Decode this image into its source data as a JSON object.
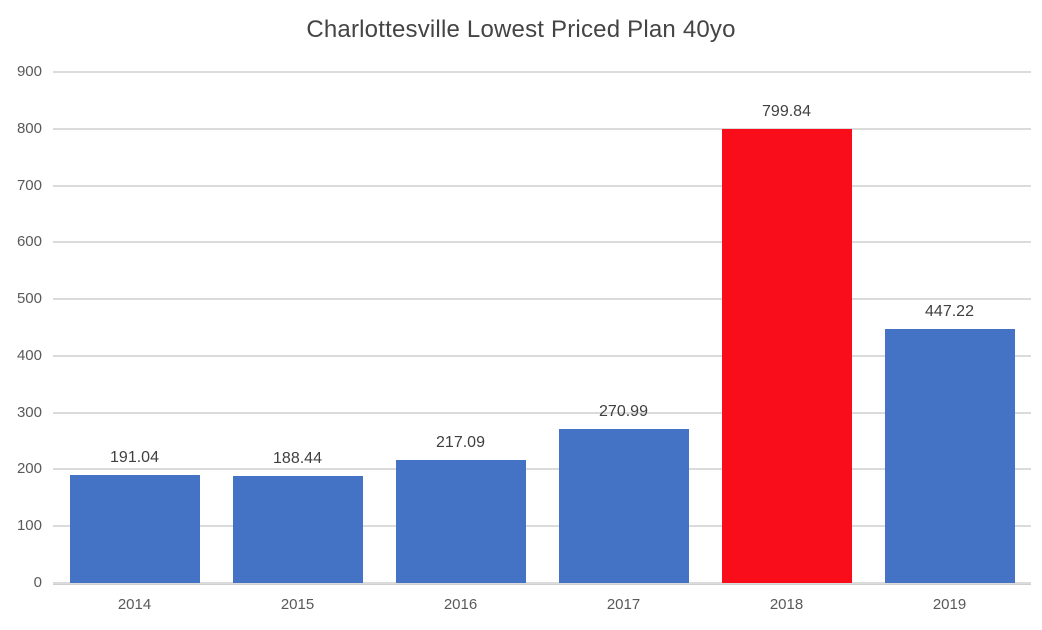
{
  "chart_data": {
    "type": "bar",
    "title": "Charlottesville Lowest Priced Plan 40yo",
    "categories": [
      "2014",
      "2015",
      "2016",
      "2017",
      "2018",
      "2019"
    ],
    "values": [
      191.04,
      188.44,
      217.09,
      270.99,
      799.84,
      447.22
    ],
    "value_labels": [
      "191.04",
      "188.44",
      "217.09",
      "270.99",
      "799.84",
      "447.22"
    ],
    "bar_colors": [
      "#4472C4",
      "#4472C4",
      "#4472C4",
      "#4472C4",
      "#FA0D1B",
      "#4472C4"
    ],
    "highlight_index": 4,
    "xlabel": "",
    "ylabel": "",
    "ylim": [
      0,
      900
    ],
    "yticks": [
      0,
      100,
      200,
      300,
      400,
      500,
      600,
      700,
      800,
      900
    ],
    "grid": "horizontal",
    "legend": "none",
    "colors": {
      "bar_default": "#4472C4",
      "bar_highlight": "#FA0D1B",
      "gridline": "#DBDBDB",
      "axis_line": "#D0CECE",
      "title_text": "#444444",
      "axis_text": "#595959",
      "data_label_text": "#404040",
      "background": "#FFFFFF"
    }
  }
}
